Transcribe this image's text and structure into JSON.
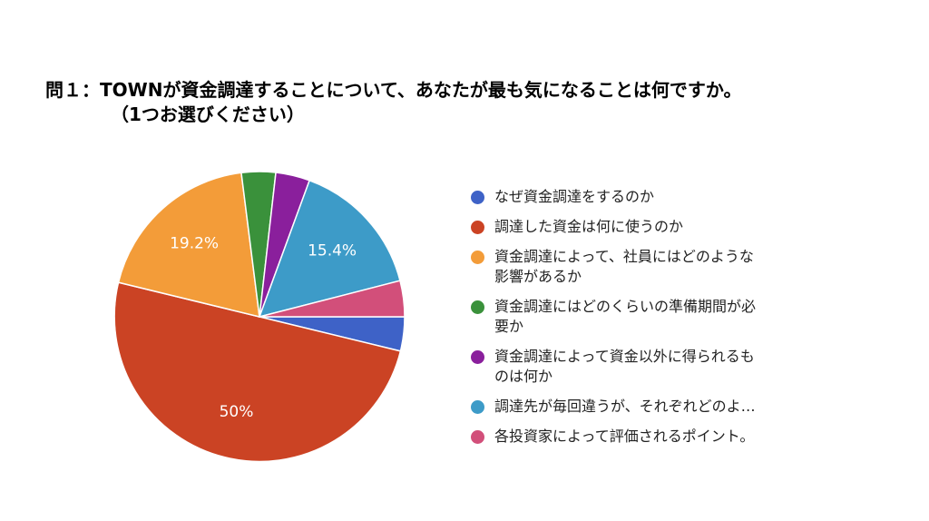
{
  "title": {
    "line1": "問１：TOWNが資金調達することについて、あなたが最も気になることは何ですか。",
    "line2": "（1つお選びください）"
  },
  "chart_data": {
    "type": "pie",
    "start": "3 o'clock, clockwise",
    "slices": [
      {
        "name": "なぜ資金調達をするのか",
        "value": 3.8,
        "color": "#3e62c7",
        "label": ""
      },
      {
        "name": "調達した資金は何に使うのか",
        "value": 50,
        "color": "#cb4324",
        "label": "50%"
      },
      {
        "name": "資金調達によって、社員にはどのような\n影響があるか",
        "value": 19.2,
        "color": "#f39c39",
        "label": "19.2%"
      },
      {
        "name": "資金調達にはどのくらいの準備期間が必\n要か",
        "value": 3.8,
        "color": "#3a913b",
        "label": ""
      },
      {
        "name": "資金調達によって資金以外に得られるも\nのは何か",
        "value": 3.8,
        "color": "#8a1f9c",
        "label": ""
      },
      {
        "name": "調達先が毎回違うが、それぞれどのよ…",
        "value": 15.4,
        "color": "#3d9bc8",
        "label": "15.4%"
      },
      {
        "name": "各投資家によって評価されるポイント。",
        "value": 4.0,
        "color": "#d24f7a",
        "label": ""
      }
    ],
    "legend_position": "right"
  }
}
